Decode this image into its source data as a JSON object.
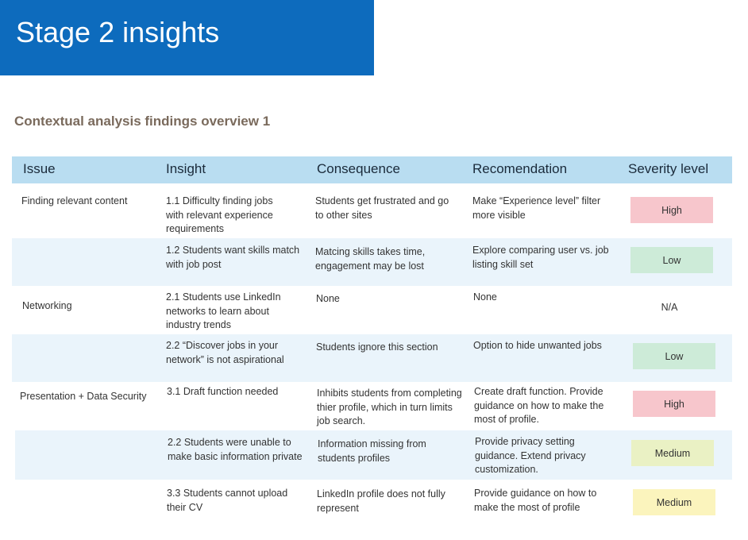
{
  "banner": {
    "title": "Stage 2 insights"
  },
  "subtitle": "Contextual analysis findings overview 1",
  "table": {
    "headers": {
      "issue": "Issue",
      "insight": "Insight",
      "consequence": "Consequence",
      "recommendation": "Recomendation",
      "severity": "Severity level"
    },
    "rows": [
      {
        "issue": "Finding relevant content",
        "insight": "1.1 Difficulty finding jobs with relevant experience requirements",
        "consequence": "Students get frustrated and go to other sites",
        "recommendation": "Make “Experience level” filter more visible",
        "severity": "High",
        "severity_color": "#f7c6cc"
      },
      {
        "issue": "",
        "insight": "1.2 Students want skills match with job post",
        "consequence": "Matcing skills takes time, engagement may be lost",
        "recommendation": "Explore comparing user vs. job listing skill set",
        "severity": "Low",
        "severity_color": "#cdebd8"
      },
      {
        "issue": "Networking",
        "insight": "2.1 Students use LinkedIn networks to learn about industry trends",
        "consequence": "None",
        "recommendation": "None",
        "severity": "N/A",
        "severity_color": ""
      },
      {
        "issue": "",
        "insight": "2.2 “Discover jobs in your network” is not aspirational",
        "consequence": "Students ignore this section",
        "recommendation": "Option to hide unwanted jobs",
        "severity": "Low",
        "severity_color": "#cdebd8"
      },
      {
        "issue": "Presentation + Data Security",
        "insight": "3.1 Draft function needed",
        "consequence": "Inhibits students from completing thier profile, which in turn limits job search.",
        "recommendation": "Create draft function. Provide guidance on how to make the most of profile.",
        "severity": "High",
        "severity_color": "#f7c6cc"
      },
      {
        "issue": "",
        "insight": "2.2 Students were unable to make basic information private",
        "consequence": "Information missing from students profiles",
        "recommendation": "Provide privacy setting guidance. Extend privacy customization.",
        "severity": "Medium",
        "severity_color": "#eaf1c4"
      },
      {
        "issue": "",
        "insight": "3.3 Students cannot upload their CV",
        "consequence": "LinkedIn profile does not fully represent",
        "recommendation": "Provide guidance on how to make the most of profile",
        "severity": "Medium",
        "severity_color": "#fbf4bd"
      }
    ]
  }
}
